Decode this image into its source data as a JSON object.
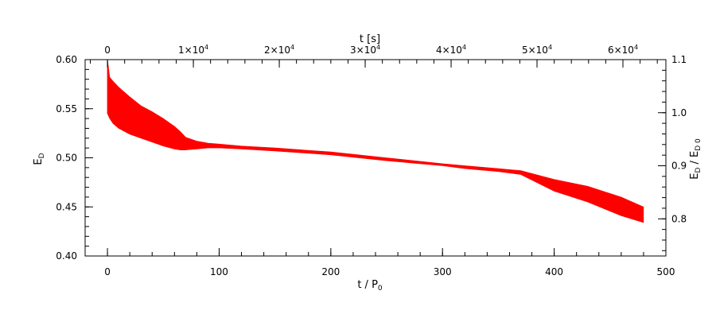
{
  "chart_data": {
    "type": "area",
    "title": "",
    "xlabel": "t / P",
    "xlabel_sub": "0",
    "ylabel": "E",
    "ylabel_sub": "D",
    "top_xlabel": "t [s]",
    "right_ylabel": "E",
    "right_ylabel_sub1": "D",
    "right_ylabel_mid": " / E",
    "right_ylabel_sub2": "D 0",
    "xlim": [
      -20,
      500
    ],
    "ylim": [
      0.4,
      0.6
    ],
    "right_ylim": [
      0.73,
      1.1
    ],
    "top_xlim": [
      -2600,
      65000
    ],
    "x_ticks": [
      {
        "value": 0,
        "label": "0"
      },
      {
        "value": 100,
        "label": "100"
      },
      {
        "value": 200,
        "label": "200"
      },
      {
        "value": 300,
        "label": "300"
      },
      {
        "value": 400,
        "label": "400"
      },
      {
        "value": 500,
        "label": "500"
      }
    ],
    "y_ticks": [
      {
        "value": 0.4,
        "label": "0.40"
      },
      {
        "value": 0.45,
        "label": "0.45"
      },
      {
        "value": 0.5,
        "label": "0.50"
      },
      {
        "value": 0.55,
        "label": "0.55"
      },
      {
        "value": 0.6,
        "label": "0.60"
      }
    ],
    "right_ticks": [
      {
        "value": 0.8,
        "label": "0.8"
      },
      {
        "value": 0.9,
        "label": "0.9"
      },
      {
        "value": 1.0,
        "label": "1.0"
      },
      {
        "value": 1.1,
        "label": "1.1"
      }
    ],
    "top_ticks": [
      {
        "value": 0,
        "label": "0",
        "exp": ""
      },
      {
        "value": 10000,
        "label": "1×10",
        "exp": "4"
      },
      {
        "value": 20000,
        "label": "2×10",
        "exp": "4"
      },
      {
        "value": 30000,
        "label": "3×10",
        "exp": "4"
      },
      {
        "value": 40000,
        "label": "4×10",
        "exp": "4"
      },
      {
        "value": 50000,
        "label": "5×10",
        "exp": "4"
      },
      {
        "value": 60000,
        "label": "6×10",
        "exp": "4"
      }
    ],
    "series": [
      {
        "color": "#ff0000",
        "x": [
          0,
          2,
          5,
          10,
          20,
          30,
          40,
          50,
          60,
          65,
          70,
          80,
          90,
          100,
          120,
          150,
          200,
          250,
          300,
          320,
          350,
          370,
          400,
          430,
          460,
          480
        ],
        "upper": [
          0.6,
          0.582,
          0.578,
          0.572,
          0.562,
          0.553,
          0.547,
          0.54,
          0.532,
          0.527,
          0.521,
          0.517,
          0.515,
          0.514,
          0.512,
          0.51,
          0.506,
          0.5,
          0.494,
          0.492,
          0.489,
          0.487,
          0.478,
          0.471,
          0.46,
          0.45
        ],
        "lower": [
          0.545,
          0.54,
          0.535,
          0.53,
          0.524,
          0.52,
          0.516,
          0.512,
          0.509,
          0.508,
          0.508,
          0.509,
          0.51,
          0.51,
          0.509,
          0.507,
          0.503,
          0.497,
          0.492,
          0.489,
          0.486,
          0.483,
          0.466,
          0.455,
          0.441,
          0.434
        ]
      }
    ]
  }
}
